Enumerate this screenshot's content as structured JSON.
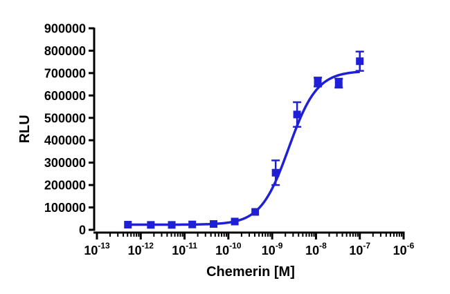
{
  "chart_data": {
    "type": "scatter",
    "title": "",
    "xlabel": "Chemerin [M]",
    "ylabel": "RLU",
    "x_scale": "log10",
    "xlim": [
      1e-13,
      1e-06
    ],
    "ylim": [
      0,
      900000
    ],
    "x_ticks": [
      {
        "base": "10",
        "exp": "-13"
      },
      {
        "base": "10",
        "exp": "-12"
      },
      {
        "base": "10",
        "exp": "-11"
      },
      {
        "base": "10",
        "exp": "-10"
      },
      {
        "base": "10",
        "exp": "-9"
      },
      {
        "base": "10",
        "exp": "-8"
      },
      {
        "base": "10",
        "exp": "-7"
      },
      {
        "base": "10",
        "exp": "-6"
      }
    ],
    "y_ticks": [
      "0",
      "100000",
      "200000",
      "300000",
      "400000",
      "500000",
      "600000",
      "700000",
      "800000",
      "900000"
    ],
    "grid": false,
    "color": "#1f1fd6",
    "series": [
      {
        "points": [
          {
            "x": 5.1e-13,
            "y": 23000,
            "err": 4000
          },
          {
            "x": 1.7e-12,
            "y": 22000,
            "err": 3000
          },
          {
            "x": 5.1e-12,
            "y": 22000,
            "err": 3000
          },
          {
            "x": 1.5e-11,
            "y": 24000,
            "err": 3000
          },
          {
            "x": 4.6e-11,
            "y": 26000,
            "err": 3000
          },
          {
            "x": 1.4e-10,
            "y": 37000,
            "err": 4000
          },
          {
            "x": 4.1e-10,
            "y": 80000,
            "err": 6000
          },
          {
            "x": 1.2e-09,
            "y": 255000,
            "err": 55000
          },
          {
            "x": 3.7e-09,
            "y": 515000,
            "err": 55000
          },
          {
            "x": 1.1e-08,
            "y": 660000,
            "err": 20000
          },
          {
            "x": 3.3e-08,
            "y": 655000,
            "err": 20000
          },
          {
            "x": 1e-07,
            "y": 753000,
            "err": 43000
          }
        ],
        "fit": {
          "bottom": 23000,
          "top": 710000,
          "logEC50": -8.62,
          "hill": 1.35
        }
      }
    ]
  }
}
